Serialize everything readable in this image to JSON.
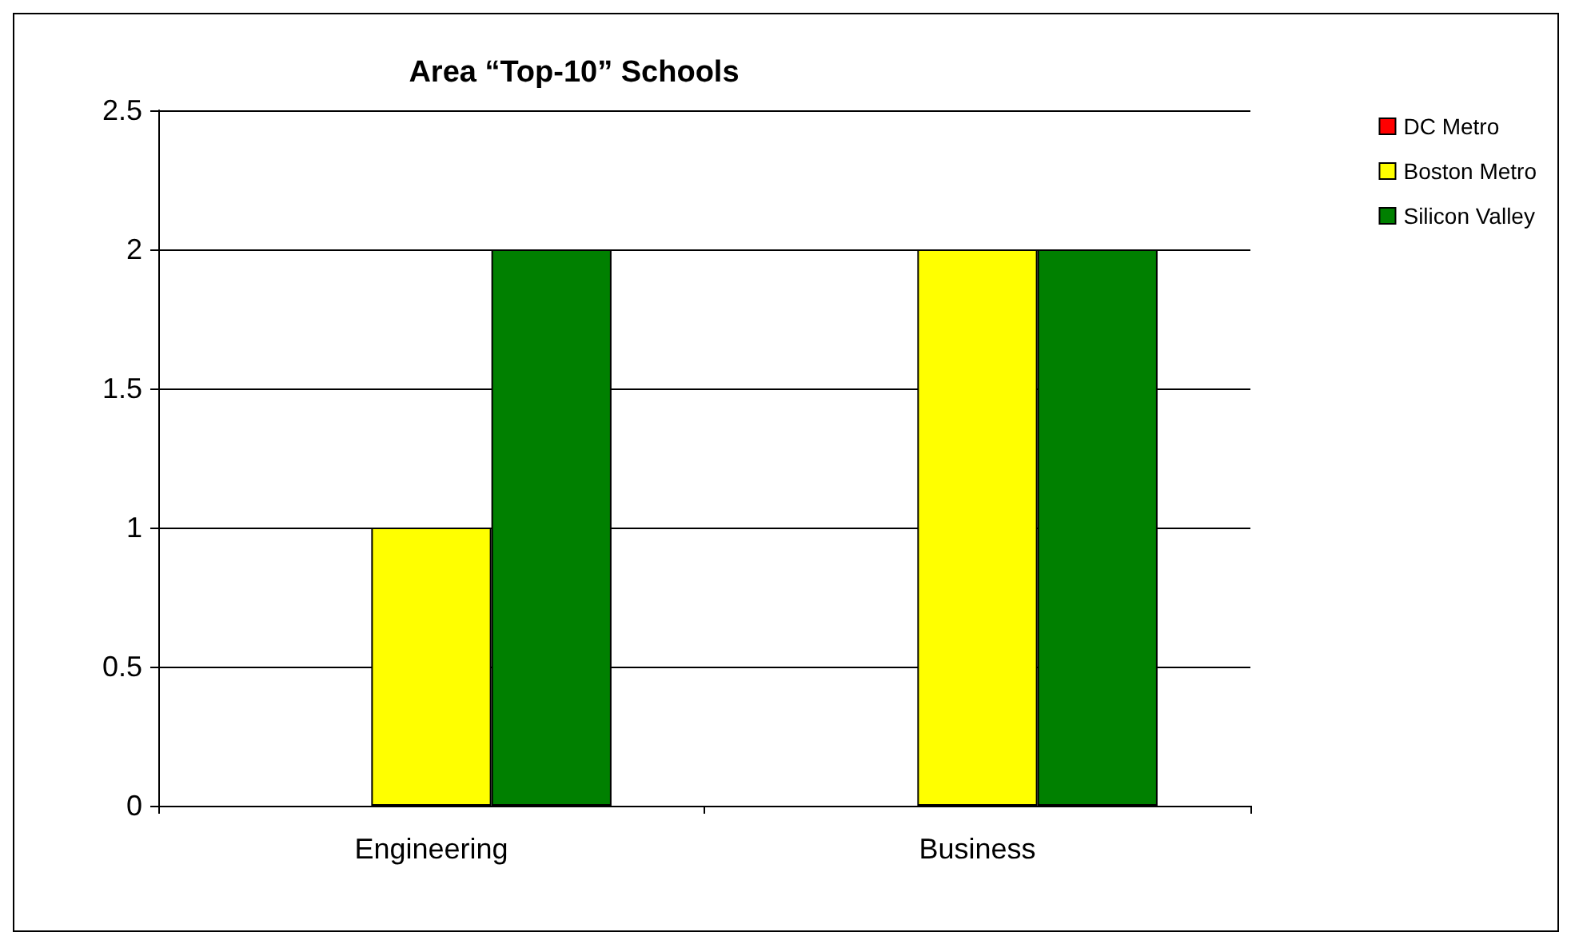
{
  "chart_data": {
    "type": "bar",
    "title": "Area “Top-10” Schools",
    "categories": [
      "Engineering",
      "Business"
    ],
    "series": [
      {
        "name": "DC Metro",
        "color": "#ff0000",
        "values": [
          0,
          0
        ]
      },
      {
        "name": "Boston Metro",
        "color": "#ffff00",
        "values": [
          1,
          2
        ]
      },
      {
        "name": "Silicon Valley",
        "color": "#008000",
        "values": [
          2,
          2
        ]
      }
    ],
    "ylim": [
      0,
      2.5
    ],
    "yticks": [
      0,
      0.5,
      1,
      1.5,
      2,
      2.5
    ],
    "grid": "y",
    "legend": "top right"
  }
}
